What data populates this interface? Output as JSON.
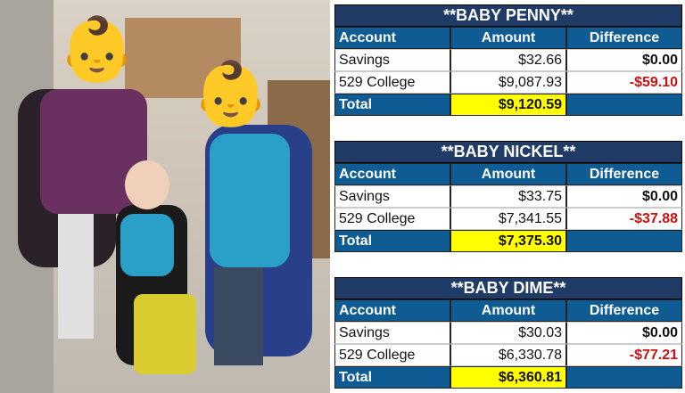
{
  "photo": {
    "faces": [
      "baby-emoji",
      "baby-emoji"
    ]
  },
  "colors": {
    "title_bg": "#1f3b66",
    "header_bg": "#0f5b94",
    "total_highlight": "#ffff00",
    "negative": "#d01010"
  },
  "tables": [
    {
      "title": "**BABY PENNY**",
      "headers": [
        "Account",
        "Amount",
        "Difference"
      ],
      "rows": [
        {
          "account": "Savings",
          "amount": "$32.66",
          "difference": "$0.00",
          "negative": false
        },
        {
          "account": "529 College",
          "amount": "$9,087.93",
          "difference": "-$59.10",
          "negative": true
        }
      ],
      "total": {
        "label": "Total",
        "amount": "$9,120.59"
      }
    },
    {
      "title": "**BABY NICKEL**",
      "headers": [
        "Account",
        "Amount",
        "Difference"
      ],
      "rows": [
        {
          "account": "Savings",
          "amount": "$33.75",
          "difference": "$0.00",
          "negative": false
        },
        {
          "account": "529 College",
          "amount": "$7,341.55",
          "difference": "-$37.88",
          "negative": true
        }
      ],
      "total": {
        "label": "Total",
        "amount": "$7,375.30"
      }
    },
    {
      "title": "**BABY DIME**",
      "headers": [
        "Account",
        "Amount",
        "Difference"
      ],
      "rows": [
        {
          "account": "Savings",
          "amount": "$30.03",
          "difference": "$0.00",
          "negative": false
        },
        {
          "account": "529 College",
          "amount": "$6,330.78",
          "difference": "-$77.21",
          "negative": true
        }
      ],
      "total": {
        "label": "Total",
        "amount": "$6,360.81"
      }
    }
  ]
}
